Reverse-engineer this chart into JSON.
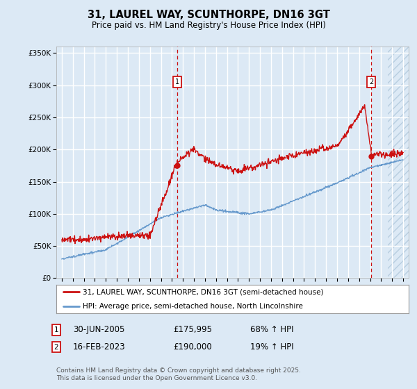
{
  "title": "31, LAUREL WAY, SCUNTHORPE, DN16 3GT",
  "subtitle": "Price paid vs. HM Land Registry's House Price Index (HPI)",
  "bg_color": "#dce9f5",
  "red_color": "#cc1111",
  "blue_color": "#6699cc",
  "ylim": [
    0,
    360000
  ],
  "yticks": [
    0,
    50000,
    100000,
    150000,
    200000,
    250000,
    300000,
    350000
  ],
  "ytick_labels": [
    "£0",
    "£50K",
    "£100K",
    "£150K",
    "£200K",
    "£250K",
    "£300K",
    "£350K"
  ],
  "xmin": 1994.5,
  "xmax": 2026.5,
  "marker1_year": 2005.5,
  "marker1_price": 175995,
  "marker2_year": 2023.12,
  "marker2_price": 190000,
  "legend1": "31, LAUREL WAY, SCUNTHORPE, DN16 3GT (semi-detached house)",
  "legend2": "HPI: Average price, semi-detached house, North Lincolnshire",
  "copyright": "Contains HM Land Registry data © Crown copyright and database right 2025.\nThis data is licensed under the Open Government Licence v3.0."
}
